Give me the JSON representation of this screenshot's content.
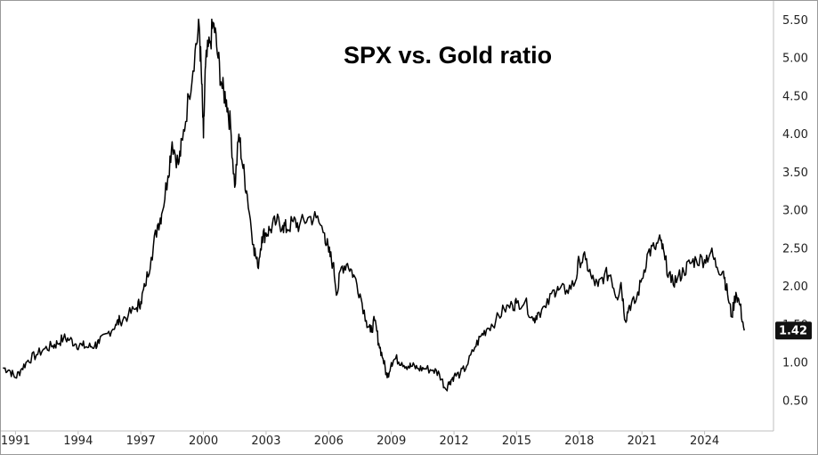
{
  "chart_data": {
    "type": "line",
    "title": "SPX vs. Gold ratio",
    "xlabel": "",
    "ylabel": "",
    "x_ticks": [
      "1991",
      "1994",
      "1997",
      "2000",
      "2003",
      "2006",
      "2009",
      "2012",
      "2015",
      "2018",
      "2021",
      "2024"
    ],
    "y_ticks": [
      "0.50",
      "1.00",
      "1.50",
      "2.00",
      "2.50",
      "3.00",
      "3.50",
      "4.00",
      "4.50",
      "5.00",
      "5.50"
    ],
    "xlim": [
      1990.3,
      2027.3
    ],
    "ylim": [
      0.1,
      5.75
    ],
    "y_axis_position": "right",
    "grid": false,
    "last_value_label": "1.42",
    "series": [
      {
        "color": "#000000",
        "x": [
          1990.4,
          1990.7,
          1991.0,
          1991.3,
          1991.6,
          1992.0,
          1992.4,
          1992.8,
          1993.0,
          1993.3,
          1993.6,
          1993.9,
          1994.2,
          1994.5,
          1994.8,
          1995.0,
          1995.4,
          1995.8,
          1996.0,
          1996.4,
          1996.8,
          1997.0,
          1997.2,
          1997.5,
          1997.8,
          1998.0,
          1998.3,
          1998.5,
          1998.8,
          1999.0,
          1999.3,
          1999.6,
          1999.8,
          1999.9,
          2000.0,
          2000.1,
          2000.3,
          2000.5,
          2000.7,
          2000.9,
          2001.1,
          2001.3,
          2001.5,
          2001.7,
          2001.9,
          2002.1,
          2002.4,
          2002.6,
          2002.8,
          2003.0,
          2003.2,
          2003.5,
          2003.8,
          2004.0,
          2004.3,
          2004.6,
          2005.0,
          2005.4,
          2005.8,
          2006.0,
          2006.2,
          2006.4,
          2006.6,
          2006.9,
          2007.2,
          2007.5,
          2007.8,
          2008.0,
          2008.2,
          2008.4,
          2008.6,
          2008.8,
          2009.0,
          2009.2,
          2009.5,
          2009.8,
          2010.0,
          2010.3,
          2010.6,
          2011.0,
          2011.3,
          2011.6,
          2011.8,
          2012.0,
          2012.3,
          2012.6,
          2013.0,
          2013.3,
          2013.6,
          2014.0,
          2014.4,
          2014.8,
          2015.0,
          2015.4,
          2015.8,
          2016.0,
          2016.4,
          2016.8,
          2017.0,
          2017.4,
          2017.8,
          2018.0,
          2018.3,
          2018.6,
          2018.9,
          2019.2,
          2019.5,
          2019.8,
          2020.0,
          2020.2,
          2020.4,
          2020.7,
          2021.0,
          2021.3,
          2021.6,
          2021.9,
          2022.1,
          2022.4,
          2022.7,
          2023.0,
          2023.3,
          2023.6,
          2024.0,
          2024.3,
          2024.6,
          2024.9,
          2025.1,
          2025.3,
          2025.5,
          2025.7,
          2025.9
        ],
        "values": [
          0.93,
          0.9,
          0.8,
          0.92,
          1.03,
          1.1,
          1.18,
          1.22,
          1.25,
          1.32,
          1.3,
          1.24,
          1.22,
          1.2,
          1.23,
          1.25,
          1.38,
          1.5,
          1.55,
          1.62,
          1.72,
          1.8,
          2.0,
          2.38,
          2.8,
          2.95,
          3.45,
          3.9,
          3.6,
          3.92,
          4.5,
          5.1,
          5.4,
          4.8,
          3.95,
          4.9,
          5.2,
          5.45,
          5.0,
          4.6,
          4.45,
          4.1,
          3.3,
          4.0,
          3.55,
          3.2,
          2.55,
          2.25,
          2.65,
          2.7,
          2.75,
          2.85,
          2.8,
          2.75,
          2.85,
          2.8,
          2.9,
          2.9,
          2.7,
          2.45,
          2.3,
          1.9,
          2.25,
          2.3,
          2.15,
          1.9,
          1.55,
          1.4,
          1.55,
          1.25,
          1.05,
          0.8,
          1.0,
          1.05,
          1.0,
          0.95,
          0.95,
          0.92,
          0.92,
          0.9,
          0.85,
          0.65,
          0.75,
          0.82,
          0.85,
          0.95,
          1.2,
          1.35,
          1.45,
          1.55,
          1.7,
          1.75,
          1.78,
          1.8,
          1.55,
          1.65,
          1.72,
          1.95,
          1.95,
          1.95,
          2.05,
          2.35,
          2.35,
          2.1,
          2.0,
          2.15,
          2.15,
          1.85,
          2.05,
          1.55,
          1.75,
          1.8,
          2.1,
          2.45,
          2.5,
          2.6,
          2.35,
          2.05,
          2.1,
          2.2,
          2.3,
          2.35,
          2.35,
          2.45,
          2.25,
          2.2,
          1.9,
          1.6,
          1.92,
          1.75,
          1.42
        ]
      }
    ]
  }
}
